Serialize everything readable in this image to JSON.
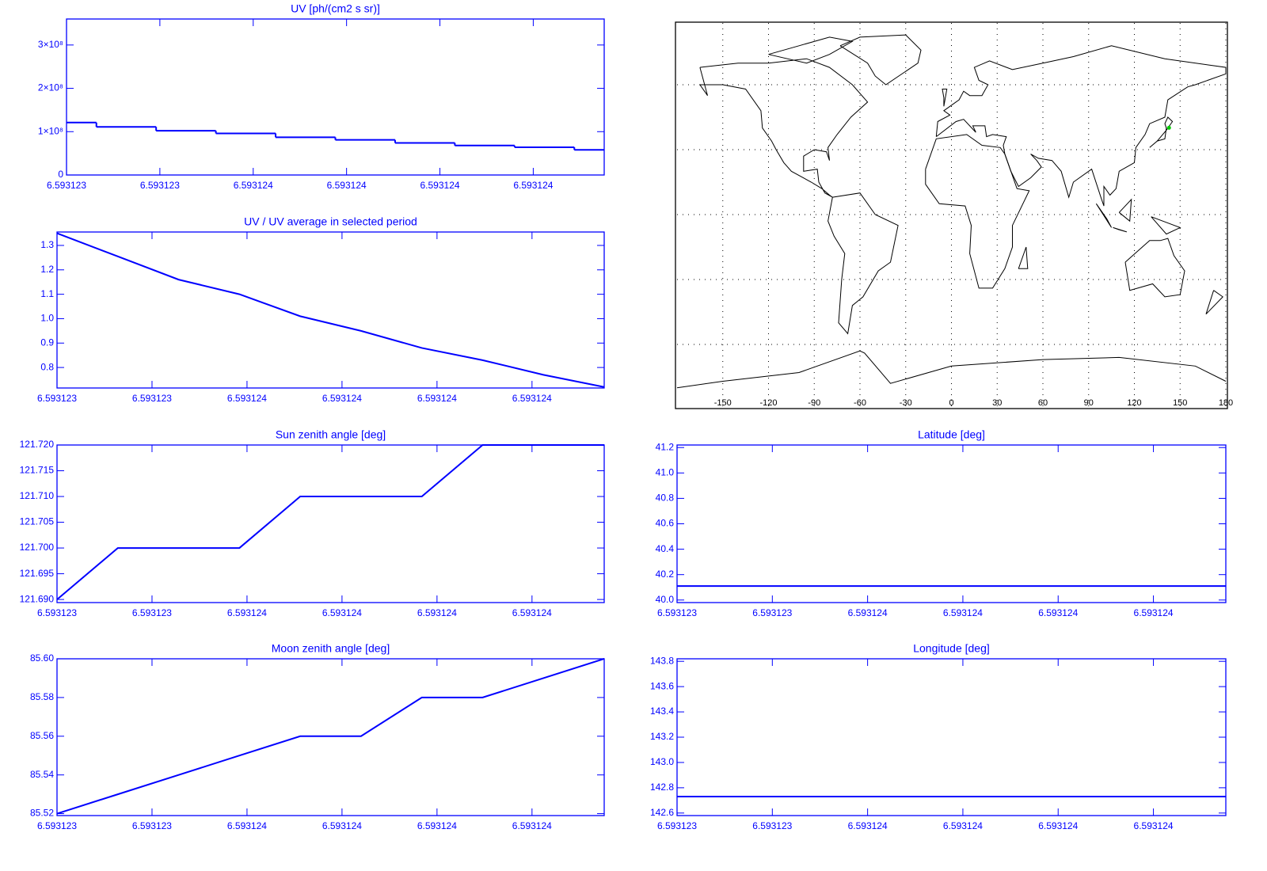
{
  "chart_data": [
    {
      "type": "step",
      "title": "UV [ph/(cm2 s sr)]",
      "x": [
        6.593123,
        6.59312316,
        6.59312332,
        6.59312348,
        6.59312364,
        6.5931238,
        6.59312396,
        6.59312412,
        6.59312428,
        6.59312444
      ],
      "values": [
        121000000,
        111000000,
        102000000,
        96000000,
        87000000,
        81000000,
        74000000,
        68000000,
        64000000,
        58000000
      ],
      "xlim": [
        6.593123,
        6.59312444
      ],
      "ylim": [
        0,
        360000000
      ],
      "xticks": [
        6.593123,
        {
          "value": 6.59312325,
          "label": "6.593123"
        },
        {
          "value": 6.5931235,
          "label": "6.593124"
        },
        {
          "value": 6.59312375,
          "label": "6.593124"
        },
        6.593124,
        {
          "value": 6.59312425,
          "label": "6.593124"
        }
      ],
      "yticks": [
        0,
        {
          "value": 100000000,
          "label": "1×10⁸"
        },
        {
          "value": 200000000,
          "label": "2×10⁸"
        },
        {
          "value": 300000000,
          "label": "3×10⁸"
        }
      ],
      "color": "#0000ff"
    },
    {
      "type": "line",
      "title": "UV / UV average in selected period",
      "x": [
        6.593123,
        6.59312316,
        6.59312332,
        6.59312348,
        6.59312364,
        6.5931238,
        6.59312396,
        6.59312412,
        6.59312428,
        6.59312444
      ],
      "values": [
        1.35,
        1.255,
        1.16,
        1.1,
        1.01,
        0.95,
        0.88,
        0.83,
        0.77,
        0.72
      ],
      "xlim": [
        6.593123,
        6.59312444
      ],
      "ylim": [
        0.716,
        1.355
      ],
      "xticks": [
        6.593123,
        {
          "value": 6.59312325,
          "label": "6.593123"
        },
        {
          "value": 6.5931235,
          "label": "6.593124"
        },
        {
          "value": 6.59312375,
          "label": "6.593124"
        },
        6.593124,
        {
          "value": 6.59312425,
          "label": "6.593124"
        }
      ],
      "yticks": [
        0.8,
        0.9,
        {
          "value": 1.0,
          "label": "1.0"
        },
        1.1,
        1.2,
        1.3
      ],
      "color": "#0000ff"
    },
    {
      "type": "line",
      "title": "Sun zenith angle [deg]",
      "x": [
        6.593123,
        6.59312316,
        6.59312332,
        6.59312348,
        6.59312364,
        6.5931238,
        6.59312396,
        6.59312412,
        6.59312428,
        6.59312444
      ],
      "values": [
        121.69,
        121.7,
        121.7,
        121.7,
        121.71,
        121.71,
        121.71,
        121.72,
        121.72,
        121.72
      ],
      "xlim": [
        6.593123,
        6.59312444
      ],
      "ylim": [
        121.6894,
        121.72
      ],
      "xticks": [
        6.593123,
        {
          "value": 6.59312325,
          "label": "6.593123"
        },
        {
          "value": 6.5931235,
          "label": "6.593124"
        },
        {
          "value": 6.59312375,
          "label": "6.593124"
        },
        6.593124,
        {
          "value": 6.59312425,
          "label": "6.593124"
        }
      ],
      "yticks": [
        {
          "value": 121.69,
          "label": "121.690"
        },
        121.695,
        {
          "value": 121.7,
          "label": "121.700"
        },
        121.705,
        {
          "value": 121.71,
          "label": "121.710"
        },
        121.715,
        {
          "value": 121.72,
          "label": "121.720"
        }
      ],
      "color": "#0000ff"
    },
    {
      "type": "line",
      "title": "Moon zenith angle [deg]",
      "x": [
        6.593123,
        6.59312316,
        6.59312332,
        6.59312348,
        6.59312364,
        6.5931238,
        6.59312396,
        6.59312412,
        6.59312428,
        6.59312444
      ],
      "values": [
        85.52,
        85.53,
        85.54,
        85.55,
        85.56,
        85.56,
        85.58,
        85.58,
        85.59,
        85.6
      ],
      "xlim": [
        6.593123,
        6.59312444
      ],
      "ylim": [
        85.519,
        85.6
      ],
      "xticks": [
        6.593123,
        {
          "value": 6.59312325,
          "label": "6.593123"
        },
        {
          "value": 6.5931235,
          "label": "6.593124"
        },
        {
          "value": 6.59312375,
          "label": "6.593124"
        },
        6.593124,
        {
          "value": 6.59312425,
          "label": "6.593124"
        }
      ],
      "yticks": [
        85.52,
        85.54,
        85.56,
        85.58,
        {
          "value": 85.6,
          "label": "85.60"
        }
      ],
      "color": "#0000ff"
    },
    {
      "type": "map",
      "xlim": [
        -180,
        180
      ],
      "ylim": [
        -90,
        90
      ],
      "xticks": [
        -150,
        -120,
        -90,
        -60,
        -30,
        0,
        30,
        60,
        90,
        120,
        150,
        180
      ],
      "grid": true,
      "color": "#000000",
      "marker_color": "#00cc00"
    },
    {
      "type": "line",
      "title": "Latitude [deg]",
      "x": [
        6.593123,
        6.59312316,
        6.59312332,
        6.59312348,
        6.59312364,
        6.5931238,
        6.59312396,
        6.59312412,
        6.59312428,
        6.59312444
      ],
      "values": [
        40.11,
        40.11,
        40.11,
        40.11,
        40.11,
        40.11,
        40.11,
        40.11,
        40.11,
        40.11
      ],
      "xlim": [
        6.593123,
        6.59312444
      ],
      "ylim": [
        39.98,
        41.22
      ],
      "xticks": [
        6.593123,
        {
          "value": 6.59312325,
          "label": "6.593123"
        },
        {
          "value": 6.5931235,
          "label": "6.593124"
        },
        {
          "value": 6.59312375,
          "label": "6.593124"
        },
        6.593124,
        {
          "value": 6.59312425,
          "label": "6.593124"
        }
      ],
      "yticks": [
        {
          "value": 40.0,
          "label": "40.0"
        },
        40.2,
        40.4,
        40.6,
        40.8,
        {
          "value": 41.0,
          "label": "41.0"
        },
        41.2
      ],
      "color": "#0000ff"
    },
    {
      "type": "line",
      "title": "Longitude [deg]",
      "x": [
        6.593123,
        6.59312316,
        6.59312332,
        6.59312348,
        6.59312364,
        6.5931238,
        6.59312396,
        6.59312412,
        6.59312428,
        6.59312444
      ],
      "values": [
        142.73,
        142.73,
        142.73,
        142.73,
        142.73,
        142.73,
        142.73,
        142.73,
        142.73,
        142.73
      ],
      "xlim": [
        6.593123,
        6.59312444
      ],
      "ylim": [
        142.58,
        143.82
      ],
      "xticks": [
        6.593123,
        {
          "value": 6.59312325,
          "label": "6.593123"
        },
        {
          "value": 6.5931235,
          "label": "6.593124"
        },
        {
          "value": 6.59312375,
          "label": "6.593124"
        },
        6.593124,
        {
          "value": 6.59312425,
          "label": "6.593124"
        }
      ],
      "yticks": [
        142.6,
        142.8,
        {
          "value": 143.0,
          "label": "143.0"
        },
        143.2,
        143.4,
        143.6,
        143.8
      ],
      "color": "#0000ff"
    }
  ]
}
